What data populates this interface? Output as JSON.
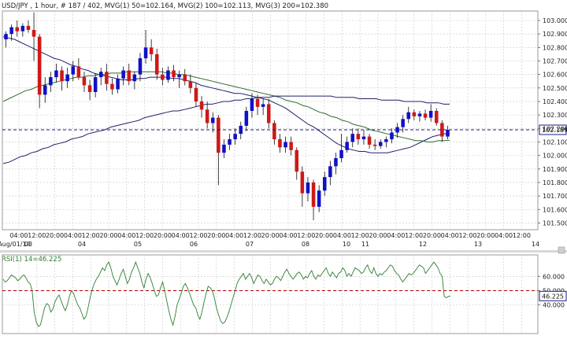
{
  "header": {
    "title": "USD/JPY , 1 hour, # 187 / 402, ",
    "mvg1": "MVG(1) 50=102.164, ",
    "mvg2": "MVG(2) 100=102.113, ",
    "mvg3": "MVG(3) 200=102.380"
  },
  "colors": {
    "background": "#ffffff",
    "grid": "#c8c8c8",
    "bull": "#1010c8",
    "bear": "#d01818",
    "wick": "#111111",
    "mvg1": "#20206a",
    "mvg2": "#2e6b2e",
    "mvg3": "#20206a",
    "rsi": "#2e7d32",
    "reference": "#1a1a8c",
    "rsi_reference": "#b40000",
    "current_label_border": "#1a1a8c"
  },
  "rsi_header": {
    "label": "RSI(1) 14=46.225"
  },
  "chart_data": [
    {
      "type": "candlestick",
      "name": "price",
      "ylim": [
        101.45,
        103.07
      ],
      "yticks": [
        "103.000",
        "102.900",
        "102.800",
        "102.700",
        "102.600",
        "102.500",
        "102.400",
        "102.300",
        "102.200",
        "102.100",
        "102.000",
        "101.900",
        "101.800",
        "101.700",
        "101.600",
        "101.500"
      ],
      "xtick_times": [
        "04:00",
        "12:00",
        "20:00",
        "04:00",
        "12:00",
        "20:00",
        "04:00",
        "12:00",
        "20:00",
        "04:00",
        "12:00",
        "20:00",
        "04:00",
        "12:00",
        "20:00",
        "04:00",
        "12:00",
        "20:00",
        "04:00",
        "12:00",
        "20:00",
        "04:00",
        "12:00",
        "20:00",
        "04:00",
        "12:00",
        "20:00",
        "04:00",
        "12:00",
        "20:00",
        "04:00",
        "12:00"
      ],
      "xtick_dates": [
        "Aug/01/14",
        "03",
        "04",
        "05",
        "06",
        "07",
        "08",
        "10",
        "11",
        "12",
        "13",
        "14"
      ],
      "current_value": "102.189",
      "reference_line": 102.19,
      "candles": [
        {
          "o": 102.86,
          "h": 102.92,
          "l": 102.8,
          "c": 102.9
        },
        {
          "o": 102.9,
          "h": 102.97,
          "l": 102.85,
          "c": 102.95
        },
        {
          "o": 102.95,
          "h": 103.0,
          "l": 102.88,
          "c": 102.92
        },
        {
          "o": 102.92,
          "h": 102.98,
          "l": 102.88,
          "c": 102.96
        },
        {
          "o": 102.96,
          "h": 103.0,
          "l": 102.91,
          "c": 102.93
        },
        {
          "o": 102.93,
          "h": 103.06,
          "l": 102.7,
          "c": 102.88
        },
        {
          "o": 102.88,
          "h": 102.9,
          "l": 102.35,
          "c": 102.45
        },
        {
          "o": 102.45,
          "h": 102.58,
          "l": 102.39,
          "c": 102.52
        },
        {
          "o": 102.52,
          "h": 102.62,
          "l": 102.47,
          "c": 102.58
        },
        {
          "o": 102.58,
          "h": 102.68,
          "l": 102.54,
          "c": 102.63
        },
        {
          "o": 102.63,
          "h": 102.66,
          "l": 102.48,
          "c": 102.55
        },
        {
          "o": 102.55,
          "h": 102.65,
          "l": 102.5,
          "c": 102.6
        },
        {
          "o": 102.6,
          "h": 102.7,
          "l": 102.55,
          "c": 102.66
        },
        {
          "o": 102.66,
          "h": 102.72,
          "l": 102.56,
          "c": 102.58
        },
        {
          "o": 102.58,
          "h": 102.62,
          "l": 102.47,
          "c": 102.52
        },
        {
          "o": 102.52,
          "h": 102.56,
          "l": 102.41,
          "c": 102.47
        },
        {
          "o": 102.47,
          "h": 102.61,
          "l": 102.43,
          "c": 102.58
        },
        {
          "o": 102.58,
          "h": 102.65,
          "l": 102.52,
          "c": 102.62
        },
        {
          "o": 102.62,
          "h": 102.68,
          "l": 102.48,
          "c": 102.53
        },
        {
          "o": 102.53,
          "h": 102.57,
          "l": 102.45,
          "c": 102.49
        },
        {
          "o": 102.49,
          "h": 102.6,
          "l": 102.46,
          "c": 102.57
        },
        {
          "o": 102.57,
          "h": 102.66,
          "l": 102.52,
          "c": 102.63
        },
        {
          "o": 102.63,
          "h": 102.68,
          "l": 102.52,
          "c": 102.55
        },
        {
          "o": 102.55,
          "h": 102.62,
          "l": 102.49,
          "c": 102.6
        },
        {
          "o": 102.6,
          "h": 102.76,
          "l": 102.55,
          "c": 102.72
        },
        {
          "o": 102.72,
          "h": 102.93,
          "l": 102.68,
          "c": 102.8
        },
        {
          "o": 102.8,
          "h": 102.86,
          "l": 102.7,
          "c": 102.75
        },
        {
          "o": 102.75,
          "h": 102.79,
          "l": 102.56,
          "c": 102.6
        },
        {
          "o": 102.6,
          "h": 102.65,
          "l": 102.52,
          "c": 102.56
        },
        {
          "o": 102.56,
          "h": 102.66,
          "l": 102.54,
          "c": 102.63
        },
        {
          "o": 102.63,
          "h": 102.67,
          "l": 102.55,
          "c": 102.58
        },
        {
          "o": 102.58,
          "h": 102.63,
          "l": 102.5,
          "c": 102.6
        },
        {
          "o": 102.6,
          "h": 102.64,
          "l": 102.52,
          "c": 102.55
        },
        {
          "o": 102.55,
          "h": 102.6,
          "l": 102.46,
          "c": 102.5
        },
        {
          "o": 102.5,
          "h": 102.54,
          "l": 102.36,
          "c": 102.4
        },
        {
          "o": 102.4,
          "h": 102.44,
          "l": 102.28,
          "c": 102.34
        },
        {
          "o": 102.34,
          "h": 102.4,
          "l": 102.2,
          "c": 102.24
        },
        {
          "o": 102.24,
          "h": 102.32,
          "l": 102.17,
          "c": 102.28
        },
        {
          "o": 102.28,
          "h": 102.3,
          "l": 101.78,
          "c": 102.02
        },
        {
          "o": 102.02,
          "h": 102.12,
          "l": 101.98,
          "c": 102.08
        },
        {
          "o": 102.08,
          "h": 102.16,
          "l": 102.04,
          "c": 102.12
        },
        {
          "o": 102.12,
          "h": 102.2,
          "l": 102.08,
          "c": 102.16
        },
        {
          "o": 102.16,
          "h": 102.25,
          "l": 102.12,
          "c": 102.22
        },
        {
          "o": 102.22,
          "h": 102.36,
          "l": 102.18,
          "c": 102.33
        },
        {
          "o": 102.33,
          "h": 102.46,
          "l": 102.28,
          "c": 102.42
        },
        {
          "o": 102.42,
          "h": 102.45,
          "l": 102.3,
          "c": 102.36
        },
        {
          "o": 102.36,
          "h": 102.42,
          "l": 102.3,
          "c": 102.38
        },
        {
          "o": 102.38,
          "h": 102.42,
          "l": 102.2,
          "c": 102.24
        },
        {
          "o": 102.24,
          "h": 102.26,
          "l": 102.08,
          "c": 102.12
        },
        {
          "o": 102.12,
          "h": 102.16,
          "l": 102.02,
          "c": 102.06
        },
        {
          "o": 102.06,
          "h": 102.14,
          "l": 102.02,
          "c": 102.1
        },
        {
          "o": 102.1,
          "h": 102.14,
          "l": 102.0,
          "c": 102.04
        },
        {
          "o": 102.04,
          "h": 102.06,
          "l": 101.82,
          "c": 101.88
        },
        {
          "o": 101.88,
          "h": 101.92,
          "l": 101.62,
          "c": 101.72
        },
        {
          "o": 101.72,
          "h": 101.84,
          "l": 101.66,
          "c": 101.8
        },
        {
          "o": 101.8,
          "h": 101.82,
          "l": 101.52,
          "c": 101.62
        },
        {
          "o": 101.62,
          "h": 101.78,
          "l": 101.58,
          "c": 101.74
        },
        {
          "o": 101.74,
          "h": 101.88,
          "l": 101.7,
          "c": 101.84
        },
        {
          "o": 101.84,
          "h": 101.96,
          "l": 101.78,
          "c": 101.92
        },
        {
          "o": 101.92,
          "h": 102.02,
          "l": 101.86,
          "c": 101.98
        },
        {
          "o": 101.98,
          "h": 102.16,
          "l": 101.95,
          "c": 102.04
        },
        {
          "o": 102.04,
          "h": 102.14,
          "l": 102.02,
          "c": 102.1
        },
        {
          "o": 102.1,
          "h": 102.2,
          "l": 102.06,
          "c": 102.16
        },
        {
          "o": 102.16,
          "h": 102.2,
          "l": 102.08,
          "c": 102.12
        },
        {
          "o": 102.12,
          "h": 102.19,
          "l": 102.08,
          "c": 102.14
        },
        {
          "o": 102.14,
          "h": 102.16,
          "l": 102.05,
          "c": 102.08
        },
        {
          "o": 102.08,
          "h": 102.12,
          "l": 102.04,
          "c": 102.07
        },
        {
          "o": 102.07,
          "h": 102.12,
          "l": 102.05,
          "c": 102.1
        },
        {
          "o": 102.1,
          "h": 102.14,
          "l": 102.06,
          "c": 102.12
        },
        {
          "o": 102.12,
          "h": 102.2,
          "l": 102.09,
          "c": 102.17
        },
        {
          "o": 102.17,
          "h": 102.24,
          "l": 102.13,
          "c": 102.21
        },
        {
          "o": 102.21,
          "h": 102.3,
          "l": 102.17,
          "c": 102.27
        },
        {
          "o": 102.27,
          "h": 102.36,
          "l": 102.24,
          "c": 102.32
        },
        {
          "o": 102.32,
          "h": 102.34,
          "l": 102.26,
          "c": 102.29
        },
        {
          "o": 102.29,
          "h": 102.33,
          "l": 102.25,
          "c": 102.31
        },
        {
          "o": 102.31,
          "h": 102.34,
          "l": 102.26,
          "c": 102.28
        },
        {
          "o": 102.28,
          "h": 102.38,
          "l": 102.25,
          "c": 102.33
        },
        {
          "o": 102.33,
          "h": 102.35,
          "l": 102.22,
          "c": 102.24
        },
        {
          "o": 102.24,
          "h": 102.26,
          "l": 102.1,
          "c": 102.14
        },
        {
          "o": 102.14,
          "h": 102.22,
          "l": 102.12,
          "c": 102.19
        }
      ],
      "series": [
        {
          "name": "MVG(1) 50",
          "values": [
            102.88,
            102.87,
            102.86,
            102.84,
            102.82,
            102.8,
            102.78,
            102.76,
            102.74,
            102.72,
            102.71,
            102.69,
            102.67,
            102.66,
            102.64,
            102.63,
            102.61,
            102.6,
            102.59,
            102.58,
            102.57,
            102.56,
            102.56,
            102.56,
            102.57,
            102.57,
            102.58,
            102.58,
            102.58,
            102.58,
            102.57,
            102.57,
            102.56,
            102.55,
            102.54,
            102.52,
            102.51,
            102.5,
            102.49,
            102.48,
            102.47,
            102.46,
            102.46,
            102.45,
            102.44,
            102.43,
            102.42,
            102.41,
            102.39,
            102.37,
            102.35,
            102.32,
            102.29,
            102.26,
            102.23,
            102.21,
            102.18,
            102.15,
            102.12,
            102.09,
            102.07,
            102.05,
            102.04,
            102.03,
            102.03,
            102.02,
            102.02,
            102.02,
            102.02,
            102.03,
            102.04,
            102.05,
            102.06,
            102.08,
            102.1,
            102.12,
            102.14,
            102.15,
            102.16,
            102.164
          ]
        },
        {
          "name": "MVG(2) 100",
          "values": [
            102.4,
            102.42,
            102.44,
            102.46,
            102.48,
            102.49,
            102.51,
            102.52,
            102.53,
            102.54,
            102.55,
            102.56,
            102.57,
            102.58,
            102.58,
            102.59,
            102.59,
            102.6,
            102.6,
            102.61,
            102.61,
            102.61,
            102.62,
            102.62,
            102.62,
            102.62,
            102.62,
            102.62,
            102.62,
            102.61,
            102.61,
            102.6,
            102.6,
            102.59,
            102.58,
            102.57,
            102.56,
            102.55,
            102.54,
            102.53,
            102.52,
            102.51,
            102.5,
            102.49,
            102.48,
            102.47,
            102.46,
            102.45,
            102.44,
            102.43,
            102.41,
            102.4,
            102.39,
            102.37,
            102.36,
            102.34,
            102.32,
            102.31,
            102.29,
            102.28,
            102.26,
            102.25,
            102.23,
            102.22,
            102.21,
            102.19,
            102.18,
            102.17,
            102.16,
            102.15,
            102.14,
            102.13,
            102.12,
            102.11,
            102.11,
            102.1,
            102.1,
            102.11,
            102.11,
            102.113
          ]
        },
        {
          "name": "MVG(3) 200",
          "values": [
            101.94,
            101.95,
            101.97,
            101.99,
            102.0,
            102.02,
            102.03,
            102.05,
            102.06,
            102.08,
            102.09,
            102.1,
            102.12,
            102.13,
            102.14,
            102.16,
            102.17,
            102.18,
            102.19,
            102.21,
            102.22,
            102.23,
            102.24,
            102.25,
            102.26,
            102.28,
            102.29,
            102.3,
            102.31,
            102.32,
            102.33,
            102.33,
            102.34,
            102.35,
            102.36,
            102.37,
            102.38,
            102.38,
            102.39,
            102.4,
            102.4,
            102.41,
            102.41,
            102.42,
            102.42,
            102.43,
            102.43,
            102.43,
            102.44,
            102.44,
            102.44,
            102.44,
            102.44,
            102.44,
            102.44,
            102.44,
            102.44,
            102.44,
            102.44,
            102.43,
            102.43,
            102.43,
            102.43,
            102.42,
            102.42,
            102.42,
            102.42,
            102.41,
            102.41,
            102.41,
            102.41,
            102.4,
            102.4,
            102.4,
            102.4,
            102.39,
            102.39,
            102.39,
            102.38,
            102.38
          ]
        }
      ]
    },
    {
      "type": "line",
      "name": "rsi",
      "ylim": [
        20,
        75
      ],
      "yticks": [
        "60.000",
        "50.000",
        "40.000"
      ],
      "reference_line": 50,
      "current_value": "46.225",
      "values": [
        58,
        56,
        57,
        59,
        61,
        60,
        59,
        57,
        58,
        60,
        61,
        59,
        56,
        55,
        50,
        35,
        28,
        25,
        26,
        32,
        38,
        41,
        40,
        35,
        37,
        42,
        45,
        47,
        43,
        39,
        36,
        40,
        46,
        50,
        48,
        44,
        40,
        38,
        34,
        30,
        32,
        38,
        45,
        51,
        55,
        58,
        60,
        63,
        66,
        64,
        68,
        70,
        66,
        60,
        57,
        54,
        58,
        62,
        65,
        60,
        55,
        58,
        63,
        66,
        70,
        66,
        62,
        56,
        52,
        58,
        62,
        59,
        55,
        50,
        46,
        47,
        52,
        56,
        50,
        43,
        36,
        30,
        26,
        32,
        40,
        44,
        48,
        53,
        55,
        52,
        48,
        44,
        40,
        38,
        33,
        30,
        35,
        42,
        48,
        53,
        52,
        50,
        45,
        38,
        33,
        29,
        27,
        28,
        31,
        35,
        40,
        45,
        50,
        55,
        58,
        60,
        62,
        58,
        60,
        62,
        59,
        55,
        58,
        61,
        60,
        57,
        55,
        58,
        56,
        54,
        55,
        58,
        60,
        59,
        57,
        60,
        63,
        65,
        62,
        60,
        58,
        60,
        62,
        63,
        61,
        58,
        60,
        59,
        62,
        64,
        60,
        58,
        61,
        60,
        62,
        64,
        66,
        62,
        60,
        63,
        61,
        59,
        62,
        63,
        66,
        64,
        60,
        62,
        60,
        63,
        66,
        65,
        64,
        62,
        63,
        66,
        68,
        64,
        62,
        66,
        62,
        60,
        62,
        61,
        63,
        64,
        66,
        68,
        67,
        64,
        62,
        61,
        58,
        56,
        58,
        60,
        62,
        61,
        62,
        64,
        66,
        68,
        67,
        66,
        62,
        64,
        66,
        68,
        70,
        68,
        66,
        62,
        60,
        46,
        45,
        46,
        46.225
      ]
    }
  ]
}
